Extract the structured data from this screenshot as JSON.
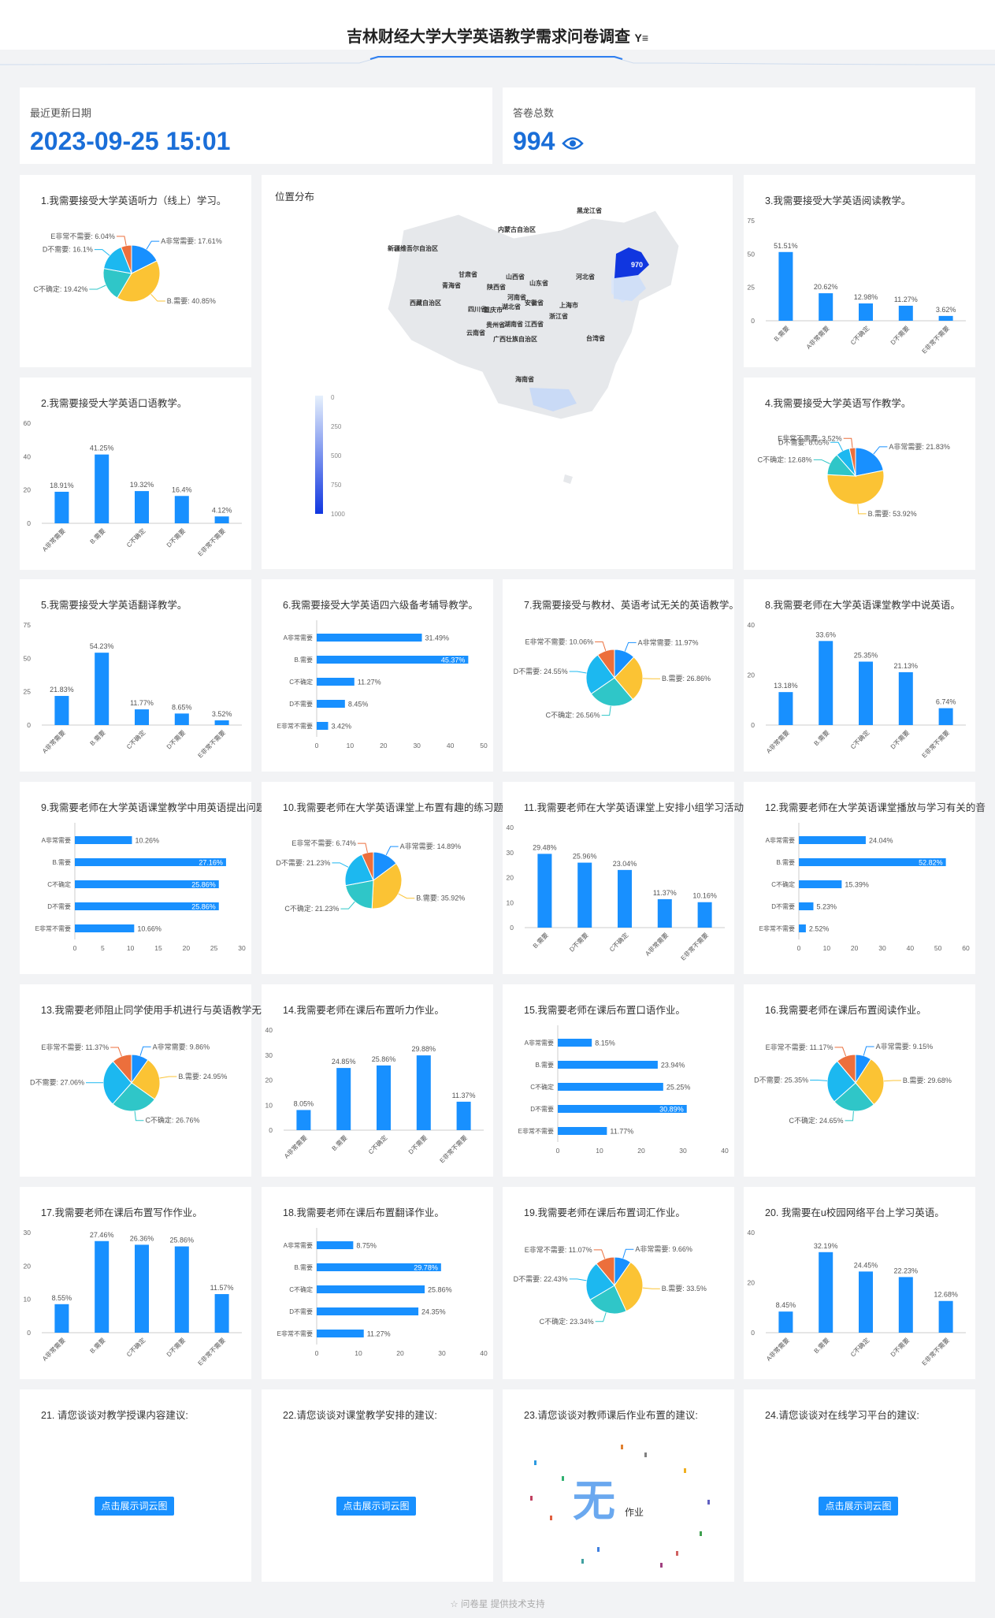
{
  "header": {
    "title": "吉林财经大学大学英语教学需求问卷调查",
    "filter_icon": "filter-icon"
  },
  "stats": {
    "date_label": "最近更新日期",
    "date_value": "2023-09-25 15:01",
    "count_label": "答卷总数",
    "count_value": "994",
    "eye_icon": "eye-icon"
  },
  "colors": {
    "bar": "#1890ff",
    "accent": "#1a6ed8",
    "pie": [
      "#1890ff",
      "#fbc334",
      "#2fc6c8",
      "#1cb8f0",
      "#ec6f3c"
    ]
  },
  "map": {
    "title": "位置分布",
    "legend_ticks": [
      "0",
      "250",
      "500",
      "750",
      "1000"
    ],
    "value_label": "970",
    "provinces": [
      "黑龙江省",
      "内蒙古自治区",
      "新疆维吾尔自治区",
      "河北省",
      "甘肃省",
      "山西省",
      "青海省",
      "陕西省",
      "山东省",
      "河南省",
      "西藏自治区",
      "四川省",
      "重庆市",
      "湖北省",
      "安徽省",
      "上海市",
      "浙江省",
      "贵州省",
      "湖南省",
      "江西省",
      "云南省",
      "广西壮族自治区",
      "台湾省",
      "海南省"
    ]
  },
  "questions": [
    {
      "title": "1.我需要接受大学英语听力（线上）学习。",
      "type": "pie",
      "labels": [
        "A非常需要: 17.61%",
        "B.需要: 40.85%",
        "C不确定: 19.42%",
        "D不需要: 16.1%",
        "E非常不需要: 6.04%"
      ],
      "values": [
        17.61,
        40.85,
        19.42,
        16.1,
        6.04
      ]
    },
    {
      "title": "3.我需要接受大学英语阅读教学。",
      "type": "vbar",
      "yticks": [
        "75",
        "50",
        "25",
        "0"
      ],
      "ymax": 75,
      "categories": [
        "B.需要",
        "A非常需要",
        "C不确定",
        "D不需要",
        "E非常不需要"
      ],
      "values": [
        51.51,
        20.62,
        12.98,
        11.27,
        3.62
      ],
      "labels": [
        "51.51%",
        "20.62%",
        "12.98%",
        "11.27%",
        "3.62%"
      ]
    },
    {
      "title": "2.我需要接受大学英语口语教学。",
      "type": "vbar",
      "yticks": [
        "60",
        "40",
        "20",
        "0"
      ],
      "ymax": 60,
      "categories": [
        "A非常需要",
        "B.需要",
        "C不确定",
        "D不需要",
        "E非常不需要"
      ],
      "values": [
        18.91,
        41.25,
        19.32,
        16.4,
        4.12
      ],
      "labels": [
        "18.91%",
        "41.25%",
        "19.32%",
        "16.4%",
        "4.12%"
      ]
    },
    {
      "title": "4.我需要接受大学英语写作教学。",
      "type": "pie",
      "labels": [
        "A非常需要: 21.83%",
        "B.需要: 53.92%",
        "C不确定: 12.68%",
        "D不需要: 8.05%",
        "E非常不需要: 3.52%"
      ],
      "values": [
        21.83,
        53.92,
        12.68,
        8.05,
        3.52
      ]
    },
    {
      "title": "5.我需要接受大学英语翻译教学。",
      "type": "vbar",
      "yticks": [
        "75",
        "50",
        "25",
        "0"
      ],
      "ymax": 75,
      "categories": [
        "A非常需要",
        "B.需要",
        "C不确定",
        "D不需要",
        "E非常不需要"
      ],
      "values": [
        21.83,
        54.23,
        11.77,
        8.65,
        3.52
      ],
      "labels": [
        "21.83%",
        "54.23%",
        "11.77%",
        "8.65%",
        "3.52%"
      ]
    },
    {
      "title": "6.我需要接受大学英语四六级备考辅导教学。",
      "type": "hbar",
      "xticks": [
        "0",
        "10",
        "20",
        "30",
        "40",
        "50"
      ],
      "xmax": 50,
      "categories": [
        "A非常需要",
        "B.需要",
        "C不确定",
        "D不需要",
        "E非常不需要"
      ],
      "values": [
        31.49,
        45.37,
        11.27,
        8.45,
        3.42
      ],
      "labels": [
        "31.49%",
        "45.37%",
        "11.27%",
        "8.45%",
        "3.42%"
      ]
    },
    {
      "title": "7.我需要接受与教材、英语考试无关的英语教学。",
      "type": "pie",
      "labels": [
        "A非常需要: 11.97%",
        "B.需要: 26.86%",
        "C不确定: 26.56%",
        "D不需要: 24.55%",
        "E非常不需要: 10.06%"
      ],
      "values": [
        11.97,
        26.86,
        26.56,
        24.55,
        10.06
      ]
    },
    {
      "title": "8.我需要老师在大学英语课堂教学中说英语。",
      "type": "vbar",
      "yticks": [
        "40",
        "20",
        "0"
      ],
      "ymax": 40,
      "categories": [
        "A非常需要",
        "B.需要",
        "C不确定",
        "D不需要",
        "E非常不需要"
      ],
      "values": [
        13.18,
        33.6,
        25.35,
        21.13,
        6.74
      ],
      "labels": [
        "13.18%",
        "33.6%",
        "25.35%",
        "21.13%",
        "6.74%"
      ]
    },
    {
      "title": "9.我需要老师在大学英语课堂教学中用英语提出问题",
      "type": "hbar",
      "xticks": [
        "0",
        "5",
        "10",
        "15",
        "20",
        "25",
        "30"
      ],
      "xmax": 30,
      "categories": [
        "A非常需要",
        "B.需要",
        "C不确定",
        "D不需要",
        "E非常不需要"
      ],
      "values": [
        10.26,
        27.16,
        25.86,
        25.86,
        10.66
      ],
      "labels": [
        "10.26%",
        "27.16%",
        "25.86%",
        "25.86%",
        "10.66%"
      ]
    },
    {
      "title": "10.我需要老师在大学英语课堂上布置有趣的练习题",
      "type": "pie",
      "labels": [
        "A非常需要: 14.89%",
        "B.需要: 35.92%",
        "C不确定: 21.23%",
        "D不需要: 21.23%",
        "E非常不需要: 6.74%"
      ],
      "values": [
        14.89,
        35.92,
        21.23,
        21.23,
        6.74
      ]
    },
    {
      "title": "11.我需要老师在大学英语课堂上安排小组学习活动",
      "type": "vbar",
      "yticks": [
        "40",
        "30",
        "20",
        "10",
        "0"
      ],
      "ymax": 40,
      "categories": [
        "B.需要",
        "D不需要",
        "C不确定",
        "A非常需要",
        "E非常不需要"
      ],
      "values": [
        29.48,
        25.96,
        23.04,
        11.37,
        10.16
      ],
      "labels": [
        "29.48%",
        "25.96%",
        "23.04%",
        "11.37%",
        "10.16%"
      ]
    },
    {
      "title": "12.我需要老师在大学英语课堂播放与学习有关的音",
      "type": "hbar",
      "xticks": [
        "0",
        "10",
        "20",
        "30",
        "40",
        "50",
        "60"
      ],
      "xmax": 60,
      "categories": [
        "A非常需要",
        "B.需要",
        "C不确定",
        "D不需要",
        "E非常不需要"
      ],
      "values": [
        24.04,
        52.82,
        15.39,
        5.23,
        2.52
      ],
      "labels": [
        "24.04%",
        "52.82%",
        "15.39%",
        "5.23%",
        "2.52%"
      ]
    },
    {
      "title": "13.我需要老师阻止同学使用手机进行与英语教学无",
      "type": "pie",
      "labels": [
        "A非常需要: 9.86%",
        "B.需要: 24.95%",
        "C不确定: 26.76%",
        "D不需要: 27.06%",
        "E非常不需要: 11.37%"
      ],
      "values": [
        9.86,
        24.95,
        26.76,
        27.06,
        11.37
      ]
    },
    {
      "title": "14.我需要老师在课后布置听力作业。",
      "type": "vbar",
      "yticks": [
        "40",
        "30",
        "20",
        "10",
        "0"
      ],
      "ymax": 40,
      "categories": [
        "A非常需要",
        "B.需要",
        "C不确定",
        "D不需要",
        "E非常不需要"
      ],
      "values": [
        8.05,
        24.85,
        25.86,
        29.88,
        11.37
      ],
      "labels": [
        "8.05%",
        "24.85%",
        "25.86%",
        "29.88%",
        "11.37%"
      ]
    },
    {
      "title": "15.我需要老师在课后布置口语作业。",
      "type": "hbar",
      "xticks": [
        "0",
        "10",
        "20",
        "30",
        "40"
      ],
      "xmax": 40,
      "categories": [
        "A非常需要",
        "B.需要",
        "C不确定",
        "D不需要",
        "E非常不需要"
      ],
      "values": [
        8.15,
        23.94,
        25.25,
        30.89,
        11.77
      ],
      "labels": [
        "8.15%",
        "23.94%",
        "25.25%",
        "30.89%",
        "11.77%"
      ]
    },
    {
      "title": "16.我需要老师在课后布置阅读作业。",
      "type": "pie",
      "labels": [
        "A非常需要: 9.15%",
        "B.需要: 29.68%",
        "C不确定: 24.65%",
        "D不需要: 25.35%",
        "E非常不需要: 11.17%"
      ],
      "values": [
        9.15,
        29.68,
        24.65,
        25.35,
        11.17
      ]
    },
    {
      "title": "17.我需要老师在课后布置写作作业。",
      "type": "vbar",
      "yticks": [
        "30",
        "20",
        "10",
        "0"
      ],
      "ymax": 30,
      "categories": [
        "A非常需要",
        "B.需要",
        "C不确定",
        "D不需要",
        "E非常不需要"
      ],
      "values": [
        8.55,
        27.46,
        26.36,
        25.86,
        11.57
      ],
      "labels": [
        "8.55%",
        "27.46%",
        "26.36%",
        "25.86%",
        "11.57%"
      ]
    },
    {
      "title": "18.我需要老师在课后布置翻译作业。",
      "type": "hbar",
      "xticks": [
        "0",
        "10",
        "20",
        "30",
        "40"
      ],
      "xmax": 40,
      "categories": [
        "A非常需要",
        "B.需要",
        "C不确定",
        "D不需要",
        "E非常不需要"
      ],
      "values": [
        8.75,
        29.78,
        25.86,
        24.35,
        11.27
      ],
      "labels": [
        "8.75%",
        "29.78%",
        "25.86%",
        "24.35%",
        "11.27%"
      ]
    },
    {
      "title": "19.我需要老师在课后布置词汇作业。",
      "type": "pie",
      "labels": [
        "A非常需要: 9.66%",
        "B.需要: 33.5%",
        "C不确定: 23.34%",
        "D不需要: 22.43%",
        "E非常不需要: 11.07%"
      ],
      "values": [
        9.66,
        33.5,
        23.34,
        22.43,
        11.07
      ]
    },
    {
      "title": "20. 我需要在u校园网络平台上学习英语。",
      "type": "vbar",
      "yticks": [
        "40",
        "20",
        "0"
      ],
      "ymax": 40,
      "categories": [
        "A非常需要",
        "B.需要",
        "C不确定",
        "D不需要",
        "E非常不需要"
      ],
      "values": [
        8.45,
        32.19,
        24.45,
        22.23,
        12.68
      ],
      "labels": [
        "8.45%",
        "32.19%",
        "24.45%",
        "22.23%",
        "12.68%"
      ]
    }
  ],
  "open": [
    {
      "title": "21. 请您谈谈对教学授课内容建议:",
      "button": "点击展示词云图"
    },
    {
      "title": "22.请您谈谈对课堂教学安排的建议:",
      "button": "点击展示词云图"
    },
    {
      "title": "23.请您谈谈对教师课后作业布置的建议:",
      "cloud_words": [
        "无",
        "作业"
      ]
    },
    {
      "title": "24.请您谈谈对在线学习平台的建议:",
      "button": "点击展示词云图"
    }
  ],
  "footer": {
    "text": "问卷星 提供技术支持",
    "star_icon": "star-icon"
  }
}
